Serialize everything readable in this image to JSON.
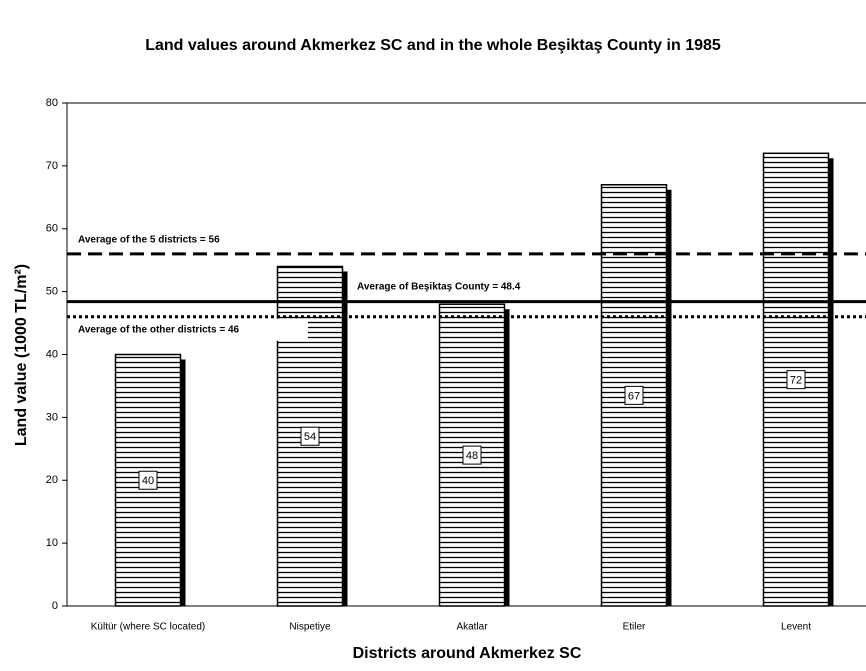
{
  "chart_data": {
    "type": "bar",
    "title": "Land values around Akmerkez SC and in the whole Beşiktaş County in 1985",
    "x_label": "Districts around Akmerkez SC",
    "y_label": "Land value (1000 TL/m²)",
    "categories": [
      "Kültür (where SC located)",
      "Nispetiye",
      "Akatlar",
      "Etiler",
      "Levent"
    ],
    "values": [
      40,
      54,
      48,
      67,
      72
    ],
    "color": "#000000",
    "ylim": [
      0,
      80
    ],
    "yticks": [
      0,
      10,
      20,
      30,
      40,
      50,
      60,
      70,
      80
    ],
    "grid": false,
    "reference_lines": [
      {
        "value": 56,
        "label": "Average of the 5 districts = 56",
        "style": "dashed"
      },
      {
        "value": 48.4,
        "label": "Average of Beşiktaş County = 48.4",
        "style": "solid"
      },
      {
        "value": 46,
        "label": "Average of the other districts = 46",
        "style": "dotted"
      }
    ]
  }
}
